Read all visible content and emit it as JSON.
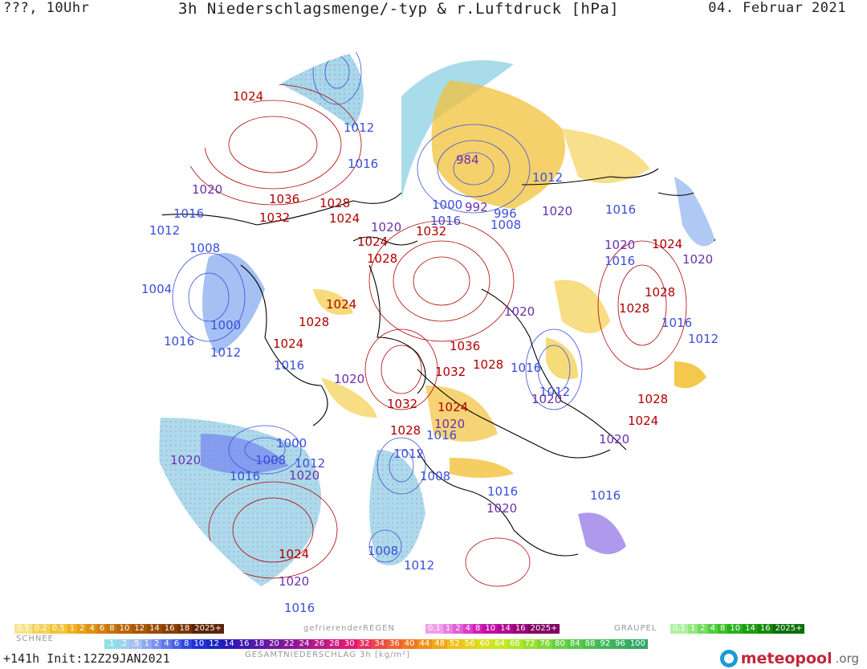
{
  "header": {
    "left": "???, 10Uhr",
    "title": "3h Niederschlagsmenge/-typ & r.Luftdruck [hPa]",
    "date": "04. Februar 2021"
  },
  "pressure_labels": [
    {
      "t": "1024",
      "c": "red"
    },
    {
      "t": "1012",
      "c": "blue"
    },
    {
      "t": "1016",
      "c": "blue"
    },
    {
      "t": "1020",
      "c": "purple"
    },
    {
      "t": "1016",
      "c": "blue"
    },
    {
      "t": "1012",
      "c": "blue"
    },
    {
      "t": "1008",
      "c": "blue"
    },
    {
      "t": "1004",
      "c": "blue"
    },
    {
      "t": "1000",
      "c": "blue"
    },
    {
      "t": "1016",
      "c": "blue"
    },
    {
      "t": "1012",
      "c": "blue"
    },
    {
      "t": "1036",
      "c": "red"
    },
    {
      "t": "1032",
      "c": "red"
    },
    {
      "t": "1028",
      "c": "red"
    },
    {
      "t": "1024",
      "c": "red"
    },
    {
      "t": "1020",
      "c": "purple"
    },
    {
      "t": "1024",
      "c": "red"
    },
    {
      "t": "1028",
      "c": "red"
    },
    {
      "t": "1032",
      "c": "red"
    },
    {
      "t": "1024",
      "c": "red"
    },
    {
      "t": "1028",
      "c": "red"
    },
    {
      "t": "1024",
      "c": "red"
    },
    {
      "t": "1016",
      "c": "blue"
    },
    {
      "t": "1020",
      "c": "purple"
    },
    {
      "t": "984",
      "c": "purple"
    },
    {
      "t": "1000",
      "c": "blue"
    },
    {
      "t": "992",
      "c": "purple"
    },
    {
      "t": "996",
      "c": "blue"
    },
    {
      "t": "1016",
      "c": "blue"
    },
    {
      "t": "1008",
      "c": "blue"
    },
    {
      "t": "1012",
      "c": "blue"
    },
    {
      "t": "1020",
      "c": "purple"
    },
    {
      "t": "1020",
      "c": "purple"
    },
    {
      "t": "1016",
      "c": "blue"
    },
    {
      "t": "1020",
      "c": "purple"
    },
    {
      "t": "1016",
      "c": "blue"
    },
    {
      "t": "1024",
      "c": "red"
    },
    {
      "t": "1020",
      "c": "purple"
    },
    {
      "t": "1028",
      "c": "red"
    },
    {
      "t": "1028",
      "c": "red"
    },
    {
      "t": "1016",
      "c": "blue"
    },
    {
      "t": "1012",
      "c": "blue"
    },
    {
      "t": "1020",
      "c": "purple"
    },
    {
      "t": "1036",
      "c": "red"
    },
    {
      "t": "1032",
      "c": "red"
    },
    {
      "t": "1028",
      "c": "red"
    },
    {
      "t": "1016",
      "c": "blue"
    },
    {
      "t": "1012",
      "c": "blue"
    },
    {
      "t": "1032",
      "c": "red"
    },
    {
      "t": "1024",
      "c": "red"
    },
    {
      "t": "1020",
      "c": "purple"
    },
    {
      "t": "1016",
      "c": "blue"
    },
    {
      "t": "1028",
      "c": "red"
    },
    {
      "t": "1024",
      "c": "red"
    },
    {
      "t": "1020",
      "c": "purple"
    },
    {
      "t": "1016",
      "c": "blue"
    },
    {
      "t": "1000",
      "c": "blue"
    },
    {
      "t": "1008",
      "c": "blue"
    },
    {
      "t": "1012",
      "c": "blue"
    },
    {
      "t": "1020",
      "c": "purple"
    },
    {
      "t": "1016",
      "c": "blue"
    },
    {
      "t": "1020",
      "c": "purple"
    },
    {
      "t": "1012",
      "c": "blue"
    },
    {
      "t": "1008",
      "c": "blue"
    },
    {
      "t": "1016",
      "c": "blue"
    },
    {
      "t": "1020",
      "c": "purple"
    },
    {
      "t": "1016",
      "c": "blue"
    },
    {
      "t": "1028",
      "c": "red"
    },
    {
      "t": "1024",
      "c": "red"
    },
    {
      "t": "1020",
      "c": "purple"
    },
    {
      "t": "1008",
      "c": "blue"
    },
    {
      "t": "1012",
      "c": "blue"
    }
  ],
  "colors": {
    "red": "#b00000",
    "blue": "#3a4fd8",
    "purple": "#6a2fb0"
  },
  "legend": {
    "snow": {
      "title": "SCHNEE",
      "values": [
        "0.1",
        "0.2",
        "0.5",
        "1",
        "2",
        "4",
        "6",
        "8",
        "10",
        "12",
        "14",
        "16",
        "18",
        "2025+"
      ],
      "colors": [
        "#f7e38a",
        "#f4d25a",
        "#f2c23a",
        "#f0b020",
        "#e8a018",
        "#dd9012",
        "#d0800c",
        "#c4720a",
        "#b86408",
        "#a85806",
        "#984c05",
        "#884004",
        "#783404",
        "#5a2403"
      ]
    },
    "rain": {
      "title": "gefrierenderREGEN",
      "values": [
        "0.1",
        "1",
        "2",
        "4",
        "8",
        "10",
        "14",
        "16",
        "2025+"
      ],
      "colors": [
        "#f0a0e8",
        "#e880e0",
        "#e060d4",
        "#d840c8",
        "#d020b8",
        "#c410a4",
        "#b00890",
        "#980478",
        "#800060"
      ]
    },
    "graupel": {
      "title": "GRAUPEL",
      "values": [
        "0.1",
        "1",
        "2",
        "4",
        "8",
        "10",
        "14",
        "16",
        "2025+"
      ],
      "colors": [
        "#b0f0a0",
        "#90e880",
        "#70dc60",
        "#50d040",
        "#38c028",
        "#28b018",
        "#1c9c10",
        "#128808",
        "#0a7004"
      ]
    },
    "total": {
      "title": "GESAMTNIEDERSCHLAG 3h [kg/m²]",
      "values": [
        ".1",
        ".2",
        ".5",
        "1",
        "2",
        "4",
        "6",
        "8",
        "10",
        "12",
        "14",
        "16",
        "18",
        "20",
        "22",
        "24",
        "26",
        "28",
        "30",
        "32",
        "34",
        "36",
        "40",
        "44",
        "48",
        "52",
        "56",
        "60",
        "64",
        "68",
        "72",
        "76",
        "80",
        "84",
        "88",
        "92",
        "96",
        "100"
      ],
      "colors": [
        "#8ee0e8",
        "#9cd0ee",
        "#a6c0f0",
        "#90a8f0",
        "#7890ee",
        "#6078ec",
        "#4860e8",
        "#3048e0",
        "#2030d8",
        "#1a28c0",
        "#2a18b8",
        "#4018b0",
        "#5818a8",
        "#7018a0",
        "#881898",
        "#a01890",
        "#b81888",
        "#d01880",
        "#e01878",
        "#e83060",
        "#ec4848",
        "#f06030",
        "#f07820",
        "#f09018",
        "#f0a818",
        "#f0c018",
        "#e8d018",
        "#d8e018",
        "#c8e820",
        "#b0e828",
        "#98e030",
        "#80d838",
        "#68d040",
        "#58c848",
        "#48c050",
        "#40b858",
        "#38b060",
        "#30a868"
      ]
    }
  },
  "footer": {
    "init": "+141h Init:12Z29JAN2021"
  },
  "brand": {
    "name": "meteopool",
    "suffix": ".org"
  }
}
